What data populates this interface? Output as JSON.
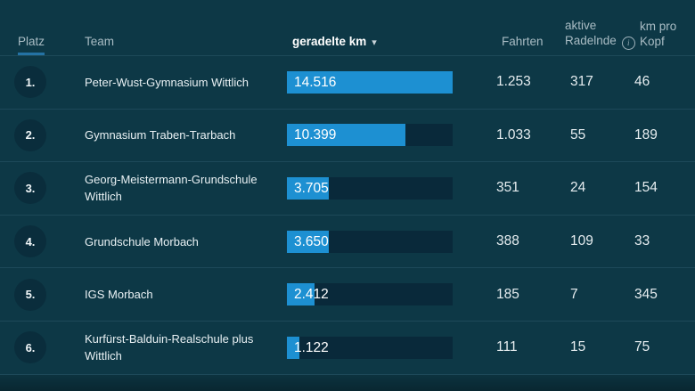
{
  "table": {
    "columns": {
      "platz": "Platz",
      "team": "Team",
      "km": "geradelte km",
      "km_sort_caret": "▾",
      "fahrten": "Fahrten",
      "aktive_radelnde": "aktive\nRadelnde",
      "aktive_info_icon": "i",
      "km_pro_kopf": "km pro\nKopf"
    },
    "sort": {
      "column": "geradelte km",
      "direction": "desc"
    },
    "max_km": 14516,
    "rows": [
      {
        "rank": "1.",
        "team": "Peter-Wust-Gymnasium Wittlich",
        "km_label": "14.516",
        "km": 14516,
        "fahrten": "1.253",
        "aktive": "317",
        "kopf": "46"
      },
      {
        "rank": "2.",
        "team": "Gymnasium Traben-Trarbach",
        "km_label": "10.399",
        "km": 10399,
        "fahrten": "1.033",
        "aktive": "55",
        "kopf": "189"
      },
      {
        "rank": "3.",
        "team": "Georg-Meistermann-Grundschule Wittlich",
        "km_label": "3.705",
        "km": 3705,
        "fahrten": "351",
        "aktive": "24",
        "kopf": "154"
      },
      {
        "rank": "4.",
        "team": "Grundschule Morbach",
        "km_label": "3.650",
        "km": 3650,
        "fahrten": "388",
        "aktive": "109",
        "kopf": "33"
      },
      {
        "rank": "5.",
        "team": "IGS Morbach",
        "km_label": "2.412",
        "km": 2412,
        "fahrten": "185",
        "aktive": "7",
        "kopf": "345"
      },
      {
        "rank": "6.",
        "team": "Kurfürst-Balduin-Realschule plus Wittlich",
        "km_label": "1.122",
        "km": 1122,
        "fahrten": "111",
        "aktive": "15",
        "kopf": "75"
      }
    ]
  },
  "colors": {
    "background": "#0d3846",
    "bar_fill": "#1d90d2",
    "bar_track": "#09293a",
    "active_sort_underline": "#2472a4",
    "divider": "#1d4959",
    "header_text": "#a9bcc4",
    "value_text": "#e6edf0"
  }
}
